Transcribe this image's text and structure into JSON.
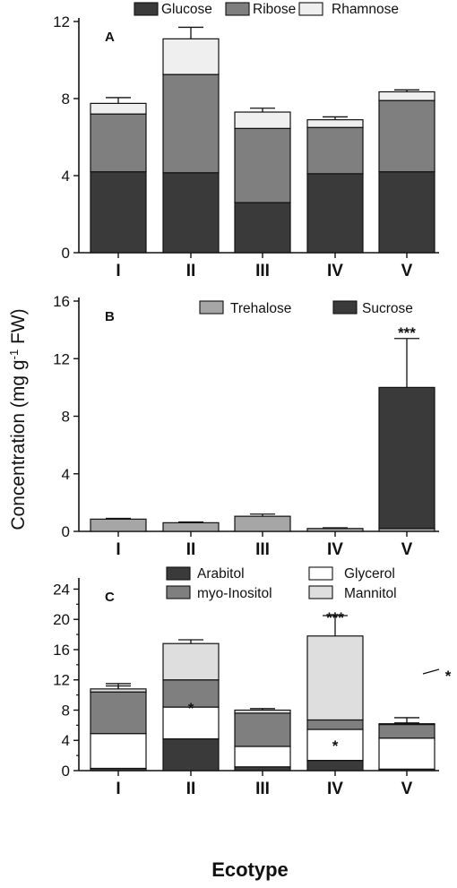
{
  "figure": {
    "ylabel_prefix": "Concentration (mg g",
    "ylabel_sup": "-1",
    "ylabel_suffix": " FW)",
    "xlabel": "Ecotype"
  },
  "colors": {
    "Glucose": "#3a3a3a",
    "Ribose": "#7f7f7f",
    "Rhamnose": "#efefef",
    "Trehalose": "#a6a6a6",
    "Sucrose": "#3a3a3a",
    "Arabitol": "#3a3a3a",
    "myo-Inositol": "#7f7f7f",
    "Glycerol": "#ffffff",
    "Mannitol": "#dedede"
  },
  "chart_data": [
    {
      "panel": "A",
      "type": "bar",
      "stacked": true,
      "categories": [
        "I",
        "II",
        "III",
        "IV",
        "V"
      ],
      "ylim": [
        0,
        12
      ],
      "yticks": [
        0,
        4,
        8,
        12
      ],
      "legend_position": "top",
      "series": [
        {
          "name": "Glucose",
          "values": [
            4.2,
            4.15,
            2.6,
            4.1,
            4.2
          ],
          "errors": [
            0.7,
            0.15,
            0.2,
            1.25,
            0.9
          ]
        },
        {
          "name": "Ribose",
          "values": [
            3.0,
            5.1,
            3.85,
            2.4,
            3.7
          ],
          "errors": [
            0,
            0.7,
            0.15,
            0.15,
            0.15
          ]
        },
        {
          "name": "Rhamnose",
          "values": [
            0.55,
            1.85,
            0.85,
            0.4,
            0.45
          ],
          "errors": [
            0.3,
            0.6,
            0.2,
            0.15,
            0.1
          ]
        }
      ],
      "annotations": []
    },
    {
      "panel": "B",
      "type": "bar",
      "stacked": true,
      "categories": [
        "I",
        "II",
        "III",
        "IV",
        "V"
      ],
      "ylim": [
        0,
        16
      ],
      "yticks": [
        0,
        4,
        8,
        12,
        16
      ],
      "legend_position": "top",
      "series": [
        {
          "name": "Trehalose",
          "values": [
            0.85,
            0.6,
            1.05,
            0.2,
            0.2
          ],
          "errors": [
            0.05,
            0.05,
            0.15,
            0.05,
            0
          ]
        },
        {
          "name": "Sucrose",
          "values": [
            0,
            0,
            0,
            0,
            9.8
          ],
          "errors": [
            0,
            0,
            0,
            0,
            3.4
          ]
        }
      ],
      "annotations": [
        {
          "category": "V",
          "text": "***"
        }
      ]
    },
    {
      "panel": "C",
      "type": "bar",
      "stacked": true,
      "categories": [
        "I",
        "II",
        "III",
        "IV",
        "V"
      ],
      "ylim": [
        0,
        25
      ],
      "yticks": [
        0,
        4,
        8,
        12,
        16,
        20,
        24
      ],
      "legend_position": "top",
      "series": [
        {
          "name": "Arabitol",
          "values": [
            0.3,
            4.2,
            0.5,
            1.35,
            0.2
          ],
          "errors": [
            0,
            1.6,
            0,
            0.7,
            0
          ]
        },
        {
          "name": "Glycerol",
          "values": [
            4.6,
            4.2,
            2.7,
            4.1,
            4.1
          ],
          "errors": [
            0,
            0.15,
            0.15,
            0.15,
            0
          ]
        },
        {
          "name": "myo-Inositol",
          "values": [
            5.5,
            3.6,
            4.4,
            1.25,
            1.8
          ],
          "errors": [
            1.1,
            0.25,
            0.1,
            0.55,
            0.9
          ]
        },
        {
          "name": "Mannitol",
          "values": [
            0.4,
            4.8,
            0.4,
            11.1,
            0.1
          ],
          "errors": [
            0.4,
            0.5,
            0.2,
            2.7,
            0.1
          ]
        }
      ],
      "annotations": [
        {
          "category": "II",
          "text": "*"
        },
        {
          "category": "IV",
          "text": "*"
        },
        {
          "category": "IV",
          "text": "***"
        },
        {
          "category": "V",
          "text": "*"
        }
      ]
    }
  ]
}
